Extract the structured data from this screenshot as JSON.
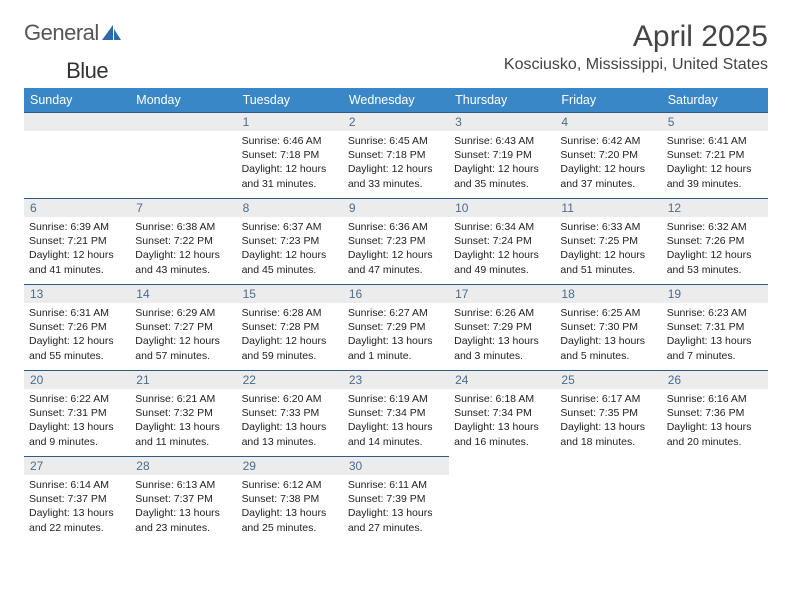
{
  "brand": {
    "part1": "General",
    "part2": "Blue"
  },
  "title": "April 2025",
  "location": "Kosciusko, Mississippi, United States",
  "colors": {
    "header_bg": "#3a87c7",
    "header_text": "#ffffff",
    "daynum_bg": "#ececec",
    "daynum_text": "#4a6d8f",
    "row_border": "#2f5b85",
    "body_text": "#222222",
    "title_text": "#444444"
  },
  "day_names": [
    "Sunday",
    "Monday",
    "Tuesday",
    "Wednesday",
    "Thursday",
    "Friday",
    "Saturday"
  ],
  "weeks": [
    [
      {
        "n": "",
        "empty": true
      },
      {
        "n": "",
        "empty": true
      },
      {
        "n": "1",
        "sunrise": "Sunrise: 6:46 AM",
        "sunset": "Sunset: 7:18 PM",
        "day1": "Daylight: 12 hours",
        "day2": "and 31 minutes."
      },
      {
        "n": "2",
        "sunrise": "Sunrise: 6:45 AM",
        "sunset": "Sunset: 7:18 PM",
        "day1": "Daylight: 12 hours",
        "day2": "and 33 minutes."
      },
      {
        "n": "3",
        "sunrise": "Sunrise: 6:43 AM",
        "sunset": "Sunset: 7:19 PM",
        "day1": "Daylight: 12 hours",
        "day2": "and 35 minutes."
      },
      {
        "n": "4",
        "sunrise": "Sunrise: 6:42 AM",
        "sunset": "Sunset: 7:20 PM",
        "day1": "Daylight: 12 hours",
        "day2": "and 37 minutes."
      },
      {
        "n": "5",
        "sunrise": "Sunrise: 6:41 AM",
        "sunset": "Sunset: 7:21 PM",
        "day1": "Daylight: 12 hours",
        "day2": "and 39 minutes."
      }
    ],
    [
      {
        "n": "6",
        "sunrise": "Sunrise: 6:39 AM",
        "sunset": "Sunset: 7:21 PM",
        "day1": "Daylight: 12 hours",
        "day2": "and 41 minutes."
      },
      {
        "n": "7",
        "sunrise": "Sunrise: 6:38 AM",
        "sunset": "Sunset: 7:22 PM",
        "day1": "Daylight: 12 hours",
        "day2": "and 43 minutes."
      },
      {
        "n": "8",
        "sunrise": "Sunrise: 6:37 AM",
        "sunset": "Sunset: 7:23 PM",
        "day1": "Daylight: 12 hours",
        "day2": "and 45 minutes."
      },
      {
        "n": "9",
        "sunrise": "Sunrise: 6:36 AM",
        "sunset": "Sunset: 7:23 PM",
        "day1": "Daylight: 12 hours",
        "day2": "and 47 minutes."
      },
      {
        "n": "10",
        "sunrise": "Sunrise: 6:34 AM",
        "sunset": "Sunset: 7:24 PM",
        "day1": "Daylight: 12 hours",
        "day2": "and 49 minutes."
      },
      {
        "n": "11",
        "sunrise": "Sunrise: 6:33 AM",
        "sunset": "Sunset: 7:25 PM",
        "day1": "Daylight: 12 hours",
        "day2": "and 51 minutes."
      },
      {
        "n": "12",
        "sunrise": "Sunrise: 6:32 AM",
        "sunset": "Sunset: 7:26 PM",
        "day1": "Daylight: 12 hours",
        "day2": "and 53 minutes."
      }
    ],
    [
      {
        "n": "13",
        "sunrise": "Sunrise: 6:31 AM",
        "sunset": "Sunset: 7:26 PM",
        "day1": "Daylight: 12 hours",
        "day2": "and 55 minutes."
      },
      {
        "n": "14",
        "sunrise": "Sunrise: 6:29 AM",
        "sunset": "Sunset: 7:27 PM",
        "day1": "Daylight: 12 hours",
        "day2": "and 57 minutes."
      },
      {
        "n": "15",
        "sunrise": "Sunrise: 6:28 AM",
        "sunset": "Sunset: 7:28 PM",
        "day1": "Daylight: 12 hours",
        "day2": "and 59 minutes."
      },
      {
        "n": "16",
        "sunrise": "Sunrise: 6:27 AM",
        "sunset": "Sunset: 7:29 PM",
        "day1": "Daylight: 13 hours",
        "day2": "and 1 minute."
      },
      {
        "n": "17",
        "sunrise": "Sunrise: 6:26 AM",
        "sunset": "Sunset: 7:29 PM",
        "day1": "Daylight: 13 hours",
        "day2": "and 3 minutes."
      },
      {
        "n": "18",
        "sunrise": "Sunrise: 6:25 AM",
        "sunset": "Sunset: 7:30 PM",
        "day1": "Daylight: 13 hours",
        "day2": "and 5 minutes."
      },
      {
        "n": "19",
        "sunrise": "Sunrise: 6:23 AM",
        "sunset": "Sunset: 7:31 PM",
        "day1": "Daylight: 13 hours",
        "day2": "and 7 minutes."
      }
    ],
    [
      {
        "n": "20",
        "sunrise": "Sunrise: 6:22 AM",
        "sunset": "Sunset: 7:31 PM",
        "day1": "Daylight: 13 hours",
        "day2": "and 9 minutes."
      },
      {
        "n": "21",
        "sunrise": "Sunrise: 6:21 AM",
        "sunset": "Sunset: 7:32 PM",
        "day1": "Daylight: 13 hours",
        "day2": "and 11 minutes."
      },
      {
        "n": "22",
        "sunrise": "Sunrise: 6:20 AM",
        "sunset": "Sunset: 7:33 PM",
        "day1": "Daylight: 13 hours",
        "day2": "and 13 minutes."
      },
      {
        "n": "23",
        "sunrise": "Sunrise: 6:19 AM",
        "sunset": "Sunset: 7:34 PM",
        "day1": "Daylight: 13 hours",
        "day2": "and 14 minutes."
      },
      {
        "n": "24",
        "sunrise": "Sunrise: 6:18 AM",
        "sunset": "Sunset: 7:34 PM",
        "day1": "Daylight: 13 hours",
        "day2": "and 16 minutes."
      },
      {
        "n": "25",
        "sunrise": "Sunrise: 6:17 AM",
        "sunset": "Sunset: 7:35 PM",
        "day1": "Daylight: 13 hours",
        "day2": "and 18 minutes."
      },
      {
        "n": "26",
        "sunrise": "Sunrise: 6:16 AM",
        "sunset": "Sunset: 7:36 PM",
        "day1": "Daylight: 13 hours",
        "day2": "and 20 minutes."
      }
    ],
    [
      {
        "n": "27",
        "sunrise": "Sunrise: 6:14 AM",
        "sunset": "Sunset: 7:37 PM",
        "day1": "Daylight: 13 hours",
        "day2": "and 22 minutes."
      },
      {
        "n": "28",
        "sunrise": "Sunrise: 6:13 AM",
        "sunset": "Sunset: 7:37 PM",
        "day1": "Daylight: 13 hours",
        "day2": "and 23 minutes."
      },
      {
        "n": "29",
        "sunrise": "Sunrise: 6:12 AM",
        "sunset": "Sunset: 7:38 PM",
        "day1": "Daylight: 13 hours",
        "day2": "and 25 minutes."
      },
      {
        "n": "30",
        "sunrise": "Sunrise: 6:11 AM",
        "sunset": "Sunset: 7:39 PM",
        "day1": "Daylight: 13 hours",
        "day2": "and 27 minutes."
      },
      {
        "n": "",
        "empty": true,
        "noborder": true
      },
      {
        "n": "",
        "empty": true,
        "noborder": true
      },
      {
        "n": "",
        "empty": true,
        "noborder": true
      }
    ]
  ]
}
